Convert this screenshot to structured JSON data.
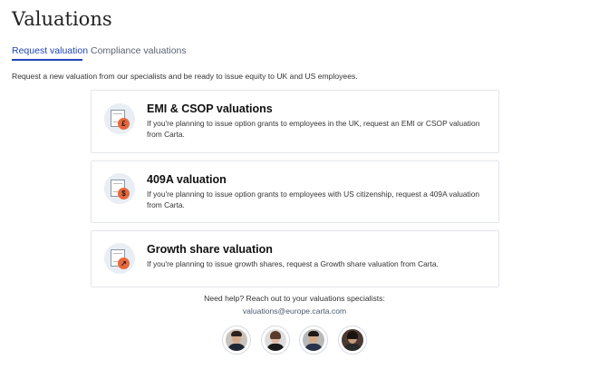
{
  "page": {
    "title": "Valuations",
    "description": "Request a new valuation from our specialists and be ready to issue equity to UK and US employees."
  },
  "tabs": [
    {
      "label": "Request valuation",
      "active": true
    },
    {
      "label": "Compliance valuations",
      "active": false
    }
  ],
  "cards": [
    {
      "title": "EMI & CSOP valuations",
      "body": "If you're planning to issue option grants to employees in the UK, request an EMI or CSOP valuation from Carta.",
      "icon": "document-pound-icon",
      "badge": "£"
    },
    {
      "title": "409A valuation",
      "body": "If you're planning to issue option grants to employees with US citizenship, request a 409A valuation from Carta.",
      "icon": "document-dollar-icon",
      "badge": "$"
    },
    {
      "title": "Growth share valuation",
      "body": "If you're planning to issue growth shares, request a Growth share valuation from Carta.",
      "icon": "document-chart-icon",
      "badge": "↗"
    }
  ],
  "help": {
    "text": "Need help? Reach out to your valuations specialists:",
    "email": "valuations@europe.carta.com"
  },
  "colors": {
    "accent": "#1f45b5",
    "badge": "#e8683c"
  }
}
